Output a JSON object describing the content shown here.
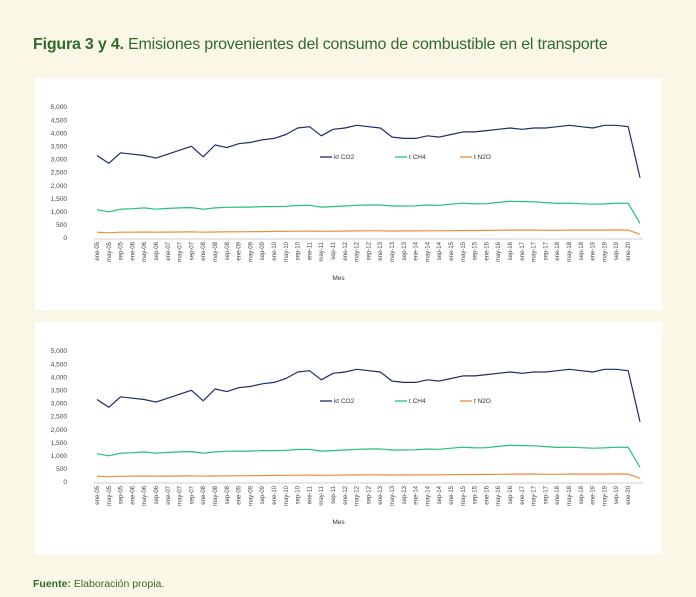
{
  "heading": {
    "label": "Figura 3 y 4.",
    "text": " Emisiones provenientes del consumo de combustible en el transporte"
  },
  "footer": {
    "label": "Fuente:",
    "text": " Elaboración propia."
  },
  "chart_data": [
    {
      "type": "line",
      "xlabel": "Mes",
      "ylabel": "",
      "ylim": [
        0,
        5000
      ],
      "yticks": [
        "0",
        "500",
        "1,000",
        "1,500",
        "2,000",
        "2,500",
        "3,000",
        "3,500",
        "4,000",
        "4,500",
        "5,000"
      ],
      "x_tick_labels": [
        "ene-05",
        "may-05",
        "sep-05",
        "ene-06",
        "may-06",
        "sep-06",
        "ene-07",
        "may-07",
        "sep-07",
        "ene-08",
        "may-08",
        "sep-08",
        "ene-09",
        "may-09",
        "sep-09",
        "ene-10",
        "may-10",
        "sep-10",
        "ene-11",
        "may-11",
        "sep-11",
        "ene-12",
        "may-12",
        "sep-12",
        "ene-13",
        "may-13",
        "sep-13",
        "ene-14",
        "may-14",
        "sep-14",
        "ene-15",
        "may-15",
        "sep-15",
        "ene-16",
        "may-16",
        "sep-16",
        "ene-17",
        "may-17",
        "sep-17",
        "ene-18",
        "may-18",
        "sep-18",
        "ene-19",
        "may-19",
        "sep-19",
        "ene-20"
      ],
      "legend_position": "top-center",
      "grid": false,
      "series": [
        {
          "name": "kt CO2",
          "color": "#1f2a6b",
          "values": [
            3150,
            2850,
            3250,
            3200,
            3150,
            3050,
            3200,
            3350,
            3500,
            3100,
            3550,
            3450,
            3600,
            3650,
            3750,
            3800,
            3950,
            4200,
            4250,
            3900,
            4150,
            4200,
            4300,
            4250,
            4200,
            3850,
            3800,
            3800,
            3900,
            3850,
            3950,
            4050,
            4050,
            4100,
            4150,
            4200,
            4150,
            4200,
            4200,
            4250,
            4300,
            4250,
            4200,
            4300,
            4300,
            4250,
            2300
          ]
        },
        {
          "name": "t CH4",
          "color": "#21c275",
          "values": [
            1080,
            1000,
            1100,
            1120,
            1150,
            1100,
            1130,
            1150,
            1160,
            1100,
            1150,
            1170,
            1180,
            1180,
            1200,
            1200,
            1210,
            1240,
            1250,
            1180,
            1200,
            1220,
            1250,
            1260,
            1260,
            1220,
            1220,
            1230,
            1260,
            1250,
            1290,
            1330,
            1300,
            1310,
            1360,
            1400,
            1390,
            1380,
            1350,
            1320,
            1330,
            1310,
            1290,
            1300,
            1330,
            1320,
            560
          ]
        },
        {
          "name": "t N2O",
          "color": "#f08a3c",
          "values": [
            220,
            200,
            220,
            220,
            230,
            220,
            225,
            230,
            235,
            220,
            230,
            235,
            235,
            240,
            245,
            250,
            255,
            260,
            265,
            255,
            260,
            265,
            270,
            275,
            275,
            265,
            270,
            270,
            275,
            275,
            280,
            285,
            285,
            290,
            295,
            300,
            300,
            300,
            295,
            295,
            300,
            300,
            300,
            300,
            310,
            300,
            140
          ]
        }
      ]
    },
    {
      "type": "line",
      "xlabel": "Mes",
      "ylabel": "",
      "ylim": [
        0,
        5000
      ],
      "yticks": [
        "0",
        "500",
        "1,000",
        "1,500",
        "2,000",
        "2,500",
        "3,000",
        "3,500",
        "4,000",
        "4,500",
        "5,000"
      ],
      "x_tick_labels": [
        "ene-05",
        "may-05",
        "sep-05",
        "ene-06",
        "may-06",
        "sep-06",
        "ene-07",
        "may-07",
        "sep-07",
        "ene-08",
        "may-08",
        "sep-08",
        "ene-09",
        "may-09",
        "sep-09",
        "ene-10",
        "may-10",
        "sep-10",
        "ene-11",
        "may-11",
        "sep-11",
        "ene-12",
        "may-12",
        "sep-12",
        "ene-13",
        "may-13",
        "sep-13",
        "ene-14",
        "may-14",
        "sep-14",
        "ene-15",
        "may-15",
        "sep-15",
        "ene-16",
        "may-16",
        "sep-16",
        "ene-17",
        "may-17",
        "sep-17",
        "ene-18",
        "may-18",
        "sep-18",
        "ene-19",
        "may-19",
        "sep-19",
        "ene-20"
      ],
      "legend_position": "top-center",
      "grid": false,
      "series": [
        {
          "name": "kt CO2",
          "color": "#1f2a6b",
          "values": [
            3150,
            2850,
            3250,
            3200,
            3150,
            3050,
            3200,
            3350,
            3500,
            3100,
            3550,
            3450,
            3600,
            3650,
            3750,
            3800,
            3950,
            4200,
            4250,
            3900,
            4150,
            4200,
            4300,
            4250,
            4200,
            3850,
            3800,
            3800,
            3900,
            3850,
            3950,
            4050,
            4050,
            4100,
            4150,
            4200,
            4150,
            4200,
            4200,
            4250,
            4300,
            4250,
            4200,
            4300,
            4300,
            4250,
            2300
          ]
        },
        {
          "name": "t CH4",
          "color": "#21c275",
          "values": [
            1080,
            1000,
            1100,
            1120,
            1150,
            1100,
            1130,
            1150,
            1160,
            1100,
            1150,
            1170,
            1180,
            1180,
            1200,
            1200,
            1210,
            1240,
            1250,
            1180,
            1200,
            1220,
            1250,
            1260,
            1260,
            1220,
            1220,
            1230,
            1260,
            1250,
            1290,
            1330,
            1300,
            1310,
            1360,
            1400,
            1390,
            1380,
            1350,
            1320,
            1330,
            1310,
            1290,
            1300,
            1330,
            1320,
            560
          ]
        },
        {
          "name": "t N2O",
          "color": "#f08a3c",
          "values": [
            220,
            200,
            220,
            220,
            230,
            220,
            225,
            230,
            235,
            220,
            230,
            235,
            235,
            240,
            245,
            250,
            255,
            260,
            265,
            255,
            260,
            265,
            270,
            275,
            275,
            265,
            270,
            270,
            275,
            275,
            280,
            285,
            285,
            290,
            295,
            300,
            300,
            300,
            295,
            295,
            300,
            300,
            300,
            300,
            310,
            300,
            140
          ]
        }
      ]
    }
  ]
}
